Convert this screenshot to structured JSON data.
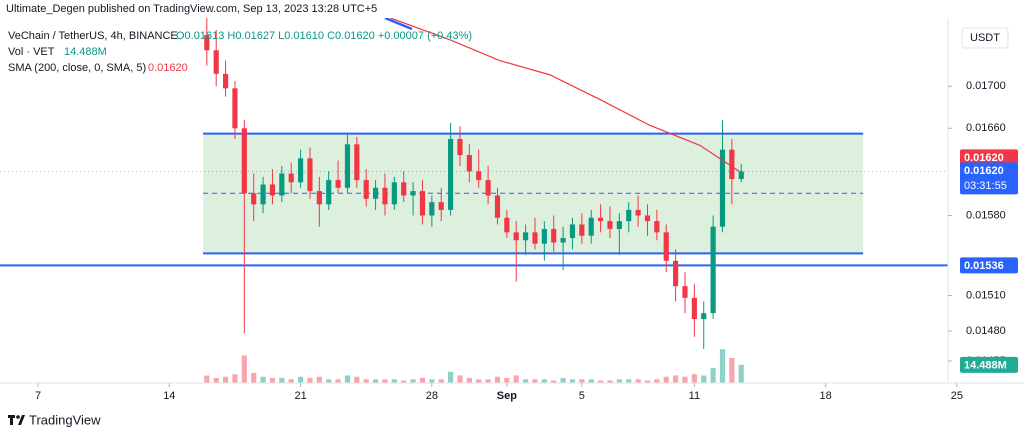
{
  "header": {
    "published": "Ultimate_Degen published on TradingView.com, Sep 13, 2023 13:28 UTC+5"
  },
  "legend": {
    "symbol": "VeChain / TetherUS, 4h, BINANCE",
    "ohlc": "O0.01613 H0.01627 L0.01610 C0.01620 +0.00007 (+0.43%)",
    "vol_name": "Vol · VET",
    "vol_value": "14.488M",
    "sma_name": "SMA (200, close, 0, SMA, 5)",
    "sma_value": "0.01620"
  },
  "footer": {
    "brand": "TradingView"
  },
  "chart_data": {
    "type": "candlestick",
    "axis_unit": "USDT",
    "log_scale": true,
    "up_color": "#089981",
    "down_color": "#f23645",
    "x": [
      16,
      16.5,
      17,
      17.5,
      18,
      18.5,
      19,
      19.5,
      20,
      20.5,
      21,
      21.5,
      22,
      22.5,
      23,
      23.5,
      24,
      24.5,
      25,
      25.5,
      26,
      26.5,
      27,
      27.5,
      28,
      28.5,
      29,
      29.5,
      30,
      30.5,
      31,
      31.5,
      32,
      32.5,
      33,
      33.5,
      34,
      34.5,
      35,
      35.5,
      36,
      36.5,
      37,
      37.5,
      38,
      38.5,
      39,
      39.5,
      40,
      40.5,
      41,
      41.5,
      42,
      42.5,
      43,
      43.5,
      44,
      44.5
    ],
    "open": [
      0.0175,
      0.01735,
      0.01712,
      0.01698,
      0.0166,
      0.016,
      0.0159,
      0.01608,
      0.01598,
      0.01618,
      0.0161,
      0.01632,
      0.01602,
      0.0159,
      0.01612,
      0.01605,
      0.01645,
      0.01612,
      0.01595,
      0.01605,
      0.0159,
      0.0161,
      0.01598,
      0.01602,
      0.0158,
      0.01592,
      0.01585,
      0.0165,
      0.01635,
      0.0162,
      0.01612,
      0.01598,
      0.01578,
      0.01565,
      0.01558,
      0.01565,
      0.01555,
      0.01568,
      0.01556,
      0.0156,
      0.01572,
      0.01562,
      0.01578,
      0.01575,
      0.01568,
      0.01575,
      0.01585,
      0.0158,
      0.01575,
      0.01565,
      0.0154,
      0.01518,
      0.01508,
      0.0149,
      0.01495,
      0.0157,
      0.0164,
      0.01613
    ],
    "high": [
      0.01767,
      0.01755,
      0.01725,
      0.01705,
      0.01668,
      0.01618,
      0.01615,
      0.01622,
      0.01625,
      0.01628,
      0.0164,
      0.01642,
      0.01615,
      0.0162,
      0.0163,
      0.01656,
      0.01652,
      0.01622,
      0.01612,
      0.01618,
      0.01615,
      0.0162,
      0.0161,
      0.01612,
      0.01598,
      0.01605,
      0.01665,
      0.01662,
      0.01645,
      0.0164,
      0.01625,
      0.01605,
      0.01585,
      0.01575,
      0.01572,
      0.01578,
      0.01575,
      0.0158,
      0.0157,
      0.01578,
      0.01582,
      0.01585,
      0.0159,
      0.01588,
      0.01582,
      0.01592,
      0.01598,
      0.0159,
      0.01585,
      0.01572,
      0.0155,
      0.0153,
      0.0152,
      0.01505,
      0.0158,
      0.01668,
      0.0165,
      0.01627
    ],
    "low": [
      0.0172,
      0.017,
      0.0169,
      0.0165,
      0.01478,
      0.01575,
      0.01582,
      0.0159,
      0.01592,
      0.016,
      0.01605,
      0.01595,
      0.0157,
      0.01585,
      0.016,
      0.016,
      0.01605,
      0.01588,
      0.01585,
      0.0158,
      0.01585,
      0.01592,
      0.0158,
      0.01572,
      0.0157,
      0.01575,
      0.0158,
      0.01625,
      0.0161,
      0.01605,
      0.0159,
      0.01572,
      0.0156,
      0.01522,
      0.01545,
      0.0155,
      0.0154,
      0.01548,
      0.01532,
      0.0155,
      0.01555,
      0.01555,
      0.01565,
      0.0156,
      0.01545,
      0.01565,
      0.0157,
      0.01562,
      0.01558,
      0.0153,
      0.01505,
      0.01495,
      0.01475,
      0.01465,
      0.0149,
      0.01565,
      0.0159,
      0.0161
    ],
    "close": [
      0.01735,
      0.01712,
      0.01698,
      0.0166,
      0.016,
      0.0159,
      0.01608,
      0.01598,
      0.01618,
      0.0161,
      0.01632,
      0.01602,
      0.0159,
      0.01612,
      0.01605,
      0.01645,
      0.01612,
      0.01595,
      0.01605,
      0.0159,
      0.0161,
      0.01598,
      0.01602,
      0.0158,
      0.01592,
      0.01585,
      0.0165,
      0.01635,
      0.0162,
      0.01612,
      0.01598,
      0.01578,
      0.01565,
      0.01558,
      0.01565,
      0.01555,
      0.01568,
      0.01556,
      0.0156,
      0.01572,
      0.01562,
      0.01578,
      0.01575,
      0.01568,
      0.01575,
      0.01585,
      0.0158,
      0.01575,
      0.01565,
      0.0154,
      0.01518,
      0.01508,
      0.0149,
      0.01495,
      0.0157,
      0.0164,
      0.01613,
      0.0162
    ],
    "volume": [
      6,
      4,
      5,
      7,
      22,
      8,
      5,
      4,
      4,
      3,
      5,
      4,
      5,
      3,
      3,
      6,
      5,
      3,
      3,
      3,
      3,
      2,
      3,
      4,
      3,
      3,
      9,
      6,
      4,
      3,
      3,
      5,
      4,
      6,
      3,
      3,
      3,
      2,
      4,
      3,
      3,
      3,
      2,
      2,
      3,
      3,
      3,
      2,
      3,
      5,
      6,
      5,
      7,
      6,
      12,
      27,
      20,
      14.488
    ],
    "vlim": [
      0,
      80
    ],
    "xlim": [
      4.97,
      59.58
    ],
    "xticks": [
      7,
      14,
      21,
      28,
      {
        "value": 32,
        "label": "Sep"
      },
      {
        "value": 36,
        "label": "5"
      },
      {
        "value": 42,
        "label": "11"
      },
      {
        "value": 49,
        "label": "18"
      },
      {
        "value": 56,
        "label": "25"
      }
    ],
    "ylim": [
      0.01437,
      0.01767
    ],
    "yticks": [
      {
        "value": 0.017,
        "label": "0.01700"
      },
      {
        "value": 0.0166,
        "label": "0.01660"
      },
      {
        "value": 0.0158,
        "label": "0.01580"
      },
      {
        "value": 0.0151,
        "label": "0.01510"
      },
      {
        "value": 0.0148,
        "label": "0.01480"
      },
      0.01455
    ],
    "sma": {
      "color": "#f23645",
      "x": [
        25.8,
        29,
        31.6,
        34.3,
        37,
        39.6,
        42.3,
        44.4
      ],
      "values": [
        0.01767,
        0.01745,
        0.01725,
        0.01711,
        0.01687,
        0.01663,
        0.01644,
        0.0162
      ]
    },
    "range_box": {
      "x": [
        15.8,
        51.0
      ],
      "top": 0.01655,
      "bottom": 0.015465,
      "mid": 0.016,
      "color": "#2962ff",
      "fill": "#d7ecd7"
    },
    "level": {
      "value": 0.01536,
      "color": "#2962ff"
    },
    "price_labels": [
      {
        "value": 0.0162,
        "label": "0.01620",
        "color": "#f23645"
      },
      {
        "value": 0.0162,
        "label": "0.01620",
        "countdown": "03:31:55",
        "color": "#2962ff"
      },
      {
        "value": 0.01536,
        "label": "0.01536",
        "color": "#2962ff"
      }
    ],
    "volume_label": "14.488M"
  }
}
